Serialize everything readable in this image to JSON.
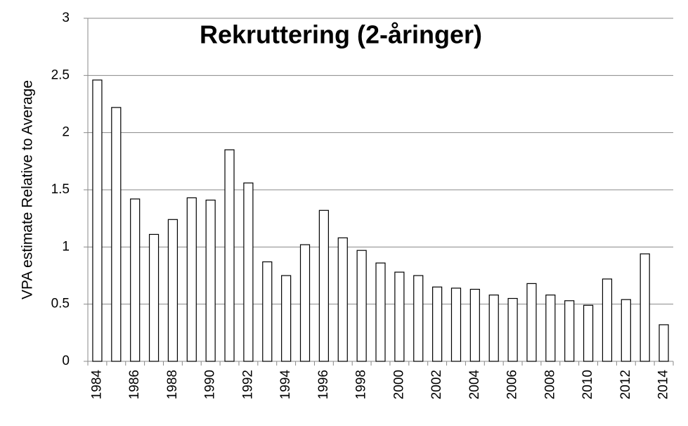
{
  "chart_data": {
    "type": "bar",
    "title": "Rekruttering (2-åringer)",
    "y_label": "VPA estimate Relative to Average",
    "categories": [
      "1984",
      null,
      "1986",
      null,
      "1988",
      null,
      "1990",
      null,
      "1992",
      null,
      "1994",
      null,
      "1996",
      null,
      "1998",
      null,
      "2000",
      null,
      "2002",
      null,
      "2004",
      null,
      "2006",
      null,
      "2008",
      null,
      "2010",
      null,
      "2012",
      null,
      "2014"
    ],
    "values": [
      2.46,
      2.22,
      1.42,
      1.11,
      1.24,
      1.43,
      1.41,
      1.85,
      1.56,
      0.87,
      0.75,
      1.02,
      1.32,
      1.08,
      0.97,
      0.86,
      0.78,
      0.75,
      0.65,
      0.64,
      0.63,
      0.58,
      0.55,
      0.68,
      0.58,
      0.53,
      0.49,
      0.72,
      0.54,
      0.94,
      0.32
    ],
    "color": "#ffffff",
    "ylim": [
      0,
      3
    ],
    "yticks": [
      0,
      0.5,
      1,
      1.5,
      2,
      2.5,
      3
    ],
    "grid": true
  }
}
